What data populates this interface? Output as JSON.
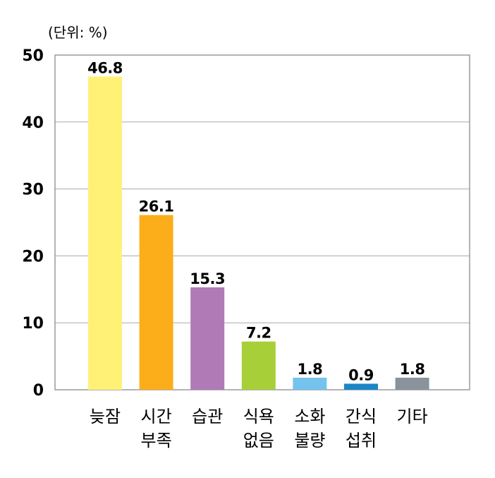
{
  "chart_data": {
    "type": "bar",
    "unit_label": "(단위: %)",
    "categories": [
      [
        "늦잠"
      ],
      [
        "시간",
        "부족"
      ],
      [
        "습관"
      ],
      [
        "식욕",
        "없음"
      ],
      [
        "소화",
        "불량"
      ],
      [
        "간식",
        "섭취"
      ],
      [
        "기타"
      ]
    ],
    "values": [
      46.8,
      26.1,
      15.3,
      7.2,
      1.8,
      0.9,
      1.8
    ],
    "value_labels": [
      "46.8",
      "26.1",
      "15.3",
      "7.2",
      "1.8",
      "0.9",
      "1.8"
    ],
    "colors": [
      "#FFF176",
      "#FBAE1A",
      "#B07AB6",
      "#A7CF38",
      "#74C3EC",
      "#1B86C6",
      "#8A929C"
    ],
    "yticks": [
      "0",
      "10",
      "20",
      "30",
      "40",
      "50"
    ],
    "ylim": [
      0,
      50
    ],
    "grid": true,
    "xlabel": "",
    "ylabel": ""
  }
}
